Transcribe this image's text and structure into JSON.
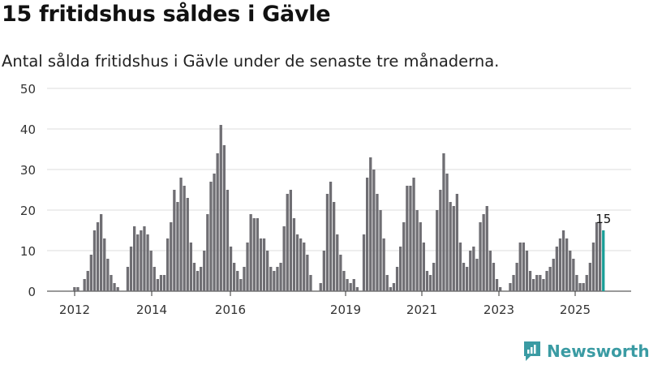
{
  "header": {
    "title": "15 fritidshus såldes i Gävle",
    "subtitle": "Antal sålda fritidshus i Gävle under de senaste tre månaderna."
  },
  "brand": {
    "name": "Newsworthy",
    "color": "#3a9ba3"
  },
  "chart_data": {
    "type": "bar",
    "title": "15 fritidshus såldes i Gävle",
    "subtitle": "Antal sålda fritidshus i Gävle under de senaste tre månaderna.",
    "xlabel": "",
    "ylabel": "",
    "ylim": [
      0,
      50
    ],
    "yticks": [
      0,
      10,
      20,
      30,
      40,
      50
    ],
    "xticks": [
      "2012",
      "2014",
      "2016",
      "2019",
      "2021",
      "2023",
      "2025"
    ],
    "grid": true,
    "legend": "none",
    "colors": {
      "bar": "#6f6e73",
      "highlight": "#1a9e97",
      "grid": "#dddddd"
    },
    "highlight_label": "15",
    "series": [
      {
        "values": [
          1,
          1,
          0,
          3,
          5,
          9,
          15,
          17,
          19,
          13,
          8,
          4,
          2,
          1,
          0,
          0,
          6,
          11,
          16,
          14,
          15,
          16,
          14,
          10,
          6,
          3,
          4,
          4,
          13,
          17,
          25,
          22,
          28,
          26,
          23,
          12,
          7,
          5,
          6,
          10,
          19,
          27,
          29,
          34,
          41,
          36,
          25,
          11,
          7,
          5,
          3,
          6,
          12,
          19,
          18,
          18,
          13,
          13,
          10,
          6,
          5,
          6,
          7,
          16,
          24,
          25,
          18,
          14,
          13,
          12,
          9,
          4,
          0,
          0,
          2,
          10,
          24,
          27,
          22,
          14,
          9,
          5,
          3,
          2,
          3,
          1,
          0,
          14,
          28,
          33,
          30,
          24,
          20,
          13,
          4,
          1,
          2,
          6,
          11,
          17,
          26,
          26,
          28,
          20,
          17,
          12,
          5,
          4,
          7,
          20,
          25,
          34,
          29,
          22,
          21,
          24,
          12,
          7,
          6,
          10,
          11,
          8,
          17,
          19,
          21,
          10,
          7,
          3,
          1,
          0,
          0,
          2,
          4,
          7,
          12,
          12,
          10,
          5,
          3,
          4,
          4,
          3,
          5,
          6,
          8,
          11,
          13,
          15,
          13,
          10,
          8,
          4,
          2,
          2,
          4,
          7,
          12,
          17,
          17,
          15
        ]
      }
    ]
  }
}
